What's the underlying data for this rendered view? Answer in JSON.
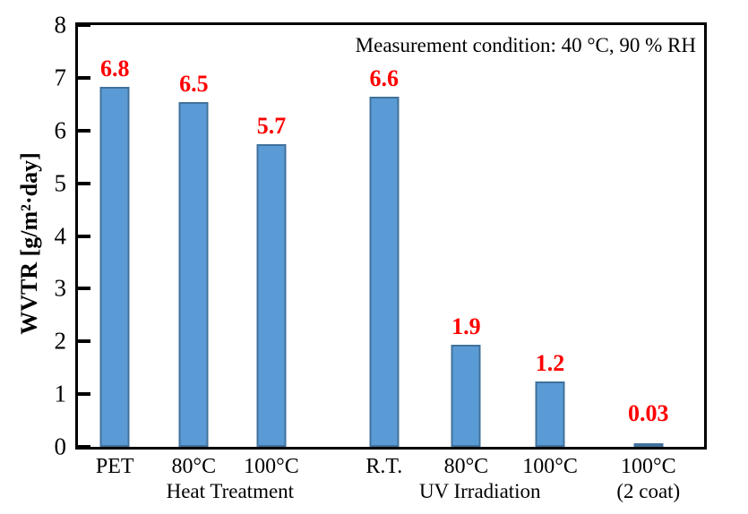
{
  "chart_data": {
    "type": "bar",
    "title": "",
    "annotation": "Measurement condition: 40 °C, 90 % RH",
    "ylabel": "WVTR [g/m²·day]",
    "xlabel": "",
    "ylim": [
      0,
      8
    ],
    "y_ticks": [
      0,
      1,
      2,
      3,
      4,
      5,
      6,
      7,
      8
    ],
    "grid": false,
    "legend": false,
    "categories": [
      "PET",
      "80°C",
      "100°C",
      "R.T.",
      "80°C",
      "100°C",
      "100°C"
    ],
    "values": [
      6.8,
      6.5,
      5.7,
      6.6,
      1.9,
      1.2,
      0.03
    ],
    "value_labels": [
      "6.8",
      "6.5",
      "5.7",
      "6.6",
      "1.9",
      "1.2",
      "0.03"
    ],
    "bar_centers_pct": [
      5.9,
      18.5,
      30.9,
      48.9,
      62.0,
      75.4,
      91.1
    ],
    "group_labels": [
      {
        "label": "Heat Treatment",
        "center_pct": 24.3
      },
      {
        "label": "UV Irradiation",
        "center_pct": 64.2
      },
      {
        "label": "(2 coat)",
        "center_pct": 91.1
      }
    ],
    "colors": {
      "bar_fill": "#5b9bd5",
      "bar_border": "#41719c",
      "value_label": "#ff0000",
      "axis": "#000000",
      "text": "#000000",
      "background": "#ffffff"
    }
  }
}
